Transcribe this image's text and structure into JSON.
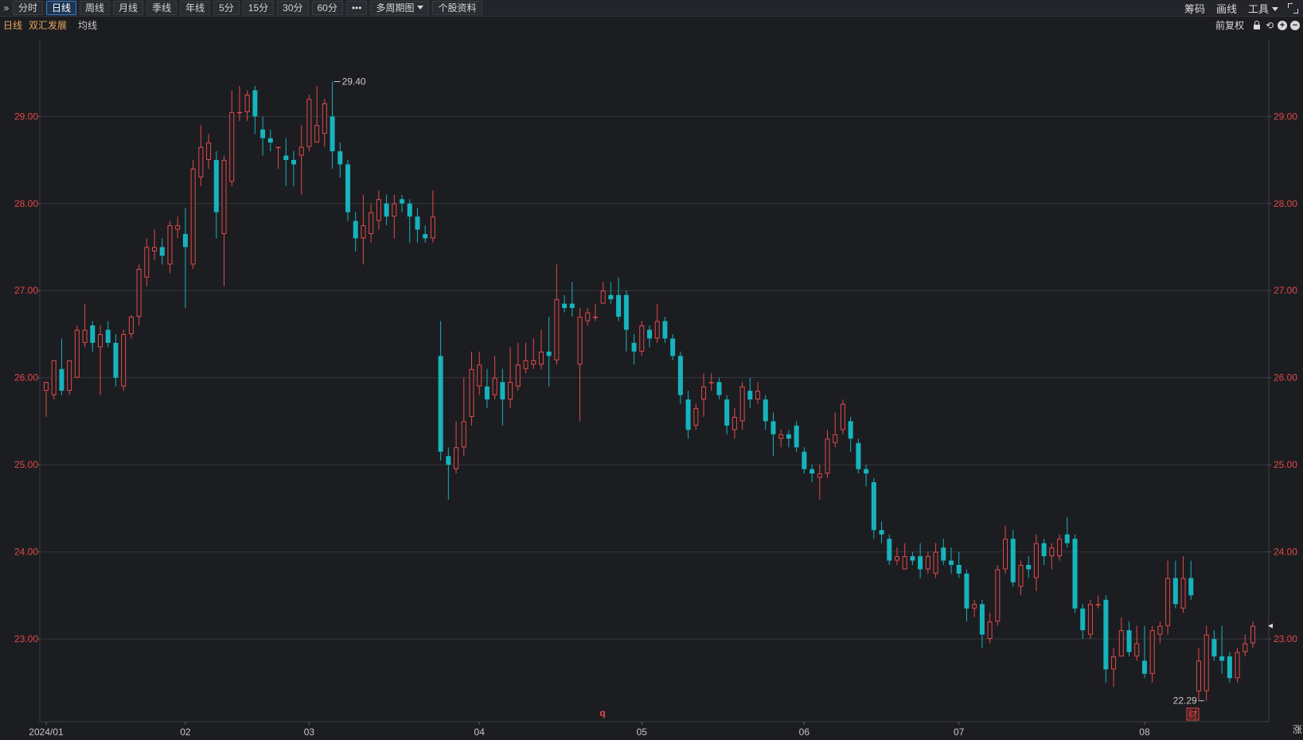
{
  "toolbar": {
    "collapse_icon": "double-chevron-right",
    "buttons": [
      "分时",
      "日线",
      "周线",
      "月线",
      "季线",
      "年线",
      "5分",
      "15分",
      "30分",
      "60分",
      "•••"
    ],
    "active": "日线",
    "multi_period": "多周期图",
    "stock_info": "个股资料",
    "right": {
      "chips": "筹码",
      "draw": "画线",
      "tools": "工具"
    }
  },
  "infobar": {
    "period": "日线",
    "stock_name": "双汇发展",
    "ma_label": "均线",
    "adjust": "前复权"
  },
  "colors": {
    "up": "#e34a4a",
    "down": "#17b3bd",
    "grid": "#33363c",
    "axis_text": "#e04848",
    "background": "#1c1d21"
  },
  "chart_data": {
    "type": "candlestick",
    "ylim": [
      22.05,
      29.88
    ],
    "y_ticks": [
      "23.00",
      "24.00",
      "25.00",
      "26.00",
      "27.00",
      "28.00",
      "29.00"
    ],
    "x_labels": [
      {
        "label": "2024/01",
        "index": 0
      },
      {
        "label": "02",
        "index": 18
      },
      {
        "label": "03",
        "index": 34
      },
      {
        "label": "04",
        "index": 56
      },
      {
        "label": "05",
        "index": 77
      },
      {
        "label": "06",
        "index": 98
      },
      {
        "label": "07",
        "index": 118
      },
      {
        "label": "08",
        "index": 142
      }
    ],
    "max_label": "29.40",
    "min_label": "22.29",
    "marker_q": "q",
    "marker_cai": "财",
    "edge_char": "涨",
    "candles": [
      [
        25.85,
        25.95,
        25.55,
        25.95
      ],
      [
        25.8,
        26.2,
        25.75,
        26.18
      ],
      [
        26.1,
        25.85,
        25.8,
        26.45
      ],
      [
        25.85,
        26.2,
        25.8,
        26.2
      ],
      [
        26.0,
        26.55,
        26.0,
        26.6
      ],
      [
        26.4,
        26.55,
        26.35,
        26.85
      ],
      [
        26.6,
        26.4,
        26.3,
        26.65
      ],
      [
        26.35,
        26.5,
        25.8,
        26.6
      ],
      [
        26.55,
        26.4,
        26.35,
        26.65
      ],
      [
        26.4,
        26.0,
        25.9,
        26.5
      ],
      [
        25.9,
        26.5,
        25.85,
        26.55
      ],
      [
        26.5,
        26.7,
        26.45,
        26.72
      ],
      [
        26.7,
        27.25,
        26.6,
        27.3
      ],
      [
        27.15,
        27.5,
        27.05,
        27.6
      ],
      [
        27.45,
        27.5,
        27.35,
        27.7
      ],
      [
        27.5,
        27.4,
        27.3,
        27.6
      ],
      [
        27.3,
        27.75,
        27.2,
        27.8
      ],
      [
        27.7,
        27.75,
        27.6,
        27.85
      ],
      [
        27.65,
        27.5,
        26.8,
        27.95
      ],
      [
        27.3,
        28.4,
        27.25,
        28.5
      ],
      [
        28.3,
        28.65,
        28.2,
        28.9
      ],
      [
        28.5,
        28.7,
        28.4,
        28.8
      ],
      [
        28.5,
        27.9,
        27.6,
        28.6
      ],
      [
        27.65,
        28.5,
        27.05,
        28.55
      ],
      [
        28.25,
        29.05,
        28.2,
        29.3
      ],
      [
        29.05,
        29.05,
        28.95,
        29.35
      ],
      [
        29.05,
        29.25,
        28.95,
        29.3
      ],
      [
        29.3,
        29.0,
        28.8,
        29.35
      ],
      [
        28.85,
        28.75,
        28.55,
        29.0
      ],
      [
        28.75,
        28.7,
        28.6,
        28.85
      ],
      [
        28.65,
        28.65,
        28.4,
        28.65
      ],
      [
        28.55,
        28.5,
        28.2,
        28.75
      ],
      [
        28.5,
        28.45,
        28.2,
        28.6
      ],
      [
        28.55,
        28.65,
        28.1,
        28.9
      ],
      [
        28.65,
        29.2,
        28.6,
        29.25
      ],
      [
        28.7,
        28.9,
        28.7,
        29.35
      ],
      [
        28.8,
        29.15,
        28.65,
        29.2
      ],
      [
        29.0,
        28.6,
        28.4,
        29.4
      ],
      [
        28.6,
        28.45,
        28.3,
        28.7
      ],
      [
        28.45,
        27.9,
        27.8,
        28.5
      ],
      [
        27.8,
        27.6,
        27.45,
        27.9
      ],
      [
        27.6,
        27.75,
        27.3,
        28.1
      ],
      [
        27.65,
        27.9,
        27.55,
        28.0
      ],
      [
        27.8,
        28.05,
        27.7,
        28.15
      ],
      [
        28.0,
        27.85,
        27.75,
        28.1
      ],
      [
        27.85,
        28.0,
        27.6,
        28.1
      ],
      [
        28.05,
        28.0,
        27.9,
        28.1
      ],
      [
        28.0,
        27.85,
        27.55,
        28.05
      ],
      [
        27.85,
        27.7,
        27.55,
        27.95
      ],
      [
        27.65,
        27.6,
        27.55,
        27.75
      ],
      [
        27.6,
        27.85,
        27.55,
        28.15
      ],
      [
        26.25,
        25.15,
        25.05,
        26.65
      ],
      [
        25.1,
        25.0,
        24.6,
        25.2
      ],
      [
        24.95,
        25.2,
        24.9,
        25.5
      ],
      [
        25.2,
        25.5,
        25.1,
        26.0
      ],
      [
        25.55,
        26.1,
        25.45,
        26.3
      ],
      [
        25.9,
        26.15,
        25.8,
        26.3
      ],
      [
        25.9,
        25.75,
        25.65,
        26.1
      ],
      [
        25.8,
        26.0,
        25.75,
        26.25
      ],
      [
        25.95,
        25.75,
        25.45,
        26.1
      ],
      [
        25.75,
        25.95,
        25.65,
        26.35
      ],
      [
        25.9,
        26.15,
        25.85,
        26.4
      ],
      [
        26.1,
        26.2,
        26.05,
        26.4
      ],
      [
        26.15,
        26.2,
        26.1,
        26.45
      ],
      [
        26.15,
        26.3,
        26.1,
        26.55
      ],
      [
        26.3,
        26.25,
        25.9,
        26.7
      ],
      [
        26.2,
        26.9,
        26.15,
        27.3
      ],
      [
        26.85,
        26.8,
        26.75,
        26.95
      ],
      [
        26.85,
        26.8,
        26.7,
        27.1
      ],
      [
        26.15,
        26.7,
        25.5,
        26.8
      ],
      [
        26.65,
        26.75,
        26.6,
        26.8
      ],
      [
        26.7,
        26.7,
        26.65,
        26.85
      ],
      [
        26.85,
        27.0,
        26.85,
        27.1
      ],
      [
        26.95,
        26.9,
        26.85,
        27.1
      ],
      [
        26.95,
        26.7,
        26.65,
        27.15
      ],
      [
        26.95,
        26.55,
        26.3,
        27.0
      ],
      [
        26.4,
        26.3,
        26.15,
        26.5
      ],
      [
        26.3,
        26.6,
        26.25,
        26.65
      ],
      [
        26.55,
        26.45,
        26.35,
        26.6
      ],
      [
        26.45,
        26.65,
        26.4,
        26.85
      ],
      [
        26.65,
        26.45,
        26.4,
        26.7
      ],
      [
        26.45,
        26.25,
        26.2,
        26.5
      ],
      [
        26.25,
        25.8,
        25.7,
        26.3
      ],
      [
        25.75,
        25.4,
        25.3,
        25.85
      ],
      [
        25.45,
        25.65,
        25.4,
        25.7
      ],
      [
        25.75,
        25.9,
        25.55,
        26.05
      ],
      [
        25.95,
        25.95,
        25.85,
        26.05
      ],
      [
        25.95,
        25.8,
        25.75,
        26.0
      ],
      [
        25.75,
        25.45,
        25.35,
        25.8
      ],
      [
        25.4,
        25.55,
        25.3,
        25.65
      ],
      [
        25.5,
        25.9,
        25.4,
        25.95
      ],
      [
        25.85,
        25.75,
        25.65,
        26.0
      ],
      [
        25.75,
        25.85,
        25.7,
        25.95
      ],
      [
        25.75,
        25.5,
        25.4,
        25.8
      ],
      [
        25.5,
        25.35,
        25.1,
        25.6
      ],
      [
        25.3,
        25.35,
        25.2,
        25.4
      ],
      [
        25.35,
        25.3,
        25.2,
        25.4
      ],
      [
        25.45,
        25.2,
        25.15,
        25.5
      ],
      [
        25.15,
        24.95,
        24.9,
        25.2
      ],
      [
        24.95,
        24.9,
        24.8,
        25.0
      ],
      [
        24.85,
        24.9,
        24.6,
        25.0
      ],
      [
        24.9,
        25.3,
        24.85,
        25.4
      ],
      [
        25.25,
        25.35,
        25.2,
        25.6
      ],
      [
        25.4,
        25.7,
        25.35,
        25.75
      ],
      [
        25.5,
        25.3,
        25.15,
        25.55
      ],
      [
        25.25,
        24.95,
        24.9,
        25.3
      ],
      [
        24.95,
        24.9,
        24.75,
        25.0
      ],
      [
        24.8,
        24.25,
        24.15,
        24.85
      ],
      [
        24.25,
        24.2,
        24.1,
        24.35
      ],
      [
        24.15,
        23.9,
        23.85,
        24.2
      ],
      [
        23.9,
        23.95,
        23.85,
        24.05
      ],
      [
        23.8,
        23.95,
        23.8,
        24.1
      ],
      [
        23.95,
        23.9,
        23.85,
        24.0
      ],
      [
        23.95,
        23.8,
        23.7,
        24.1
      ],
      [
        23.8,
        23.95,
        23.75,
        24.0
      ],
      [
        23.75,
        24.0,
        23.7,
        24.1
      ],
      [
        24.05,
        23.9,
        23.85,
        24.15
      ],
      [
        23.9,
        23.85,
        23.75,
        24.05
      ],
      [
        23.85,
        23.75,
        23.7,
        24.0
      ],
      [
        23.75,
        23.35,
        23.2,
        23.8
      ],
      [
        23.35,
        23.4,
        23.25,
        23.45
      ],
      [
        23.4,
        23.05,
        22.9,
        23.45
      ],
      [
        23.0,
        23.2,
        22.95,
        23.3
      ],
      [
        23.2,
        23.8,
        23.15,
        23.85
      ],
      [
        23.8,
        24.15,
        23.75,
        24.3
      ],
      [
        24.15,
        23.65,
        23.6,
        24.25
      ],
      [
        23.6,
        23.85,
        23.5,
        23.9
      ],
      [
        23.85,
        23.8,
        23.7,
        23.95
      ],
      [
        23.7,
        24.1,
        23.55,
        24.2
      ],
      [
        24.1,
        23.95,
        23.85,
        24.15
      ],
      [
        23.95,
        24.05,
        23.8,
        24.1
      ],
      [
        23.95,
        24.15,
        23.9,
        24.2
      ],
      [
        24.2,
        24.1,
        24.05,
        24.4
      ],
      [
        24.15,
        23.35,
        23.3,
        24.2
      ],
      [
        23.35,
        23.1,
        23.0,
        23.4
      ],
      [
        23.05,
        23.4,
        23.0,
        23.45
      ],
      [
        23.4,
        23.4,
        23.35,
        23.5
      ],
      [
        23.45,
        22.65,
        22.5,
        23.5
      ],
      [
        22.65,
        22.8,
        22.45,
        22.9
      ],
      [
        22.8,
        23.1,
        22.8,
        23.25
      ],
      [
        23.1,
        22.85,
        22.8,
        23.2
      ],
      [
        22.8,
        22.95,
        22.75,
        23.15
      ],
      [
        22.75,
        22.6,
        22.55,
        23.15
      ],
      [
        22.6,
        23.1,
        22.5,
        23.15
      ],
      [
        23.05,
        23.15,
        22.95,
        23.2
      ],
      [
        23.15,
        23.7,
        23.05,
        23.9
      ],
      [
        23.7,
        23.4,
        23.35,
        23.9
      ],
      [
        23.35,
        23.7,
        23.3,
        23.95
      ],
      [
        23.7,
        23.5,
        23.45,
        23.9
      ],
      [
        22.4,
        22.75,
        22.3,
        22.9
      ],
      [
        22.4,
        23.05,
        22.29,
        23.15
      ],
      [
        23.0,
        22.8,
        22.75,
        23.1
      ],
      [
        22.8,
        22.75,
        22.6,
        23.15
      ],
      [
        22.8,
        22.55,
        22.5,
        22.85
      ],
      [
        22.55,
        22.85,
        22.5,
        22.9
      ],
      [
        22.85,
        22.95,
        22.8,
        23.05
      ],
      [
        22.95,
        23.15,
        22.9,
        23.2
      ]
    ]
  }
}
